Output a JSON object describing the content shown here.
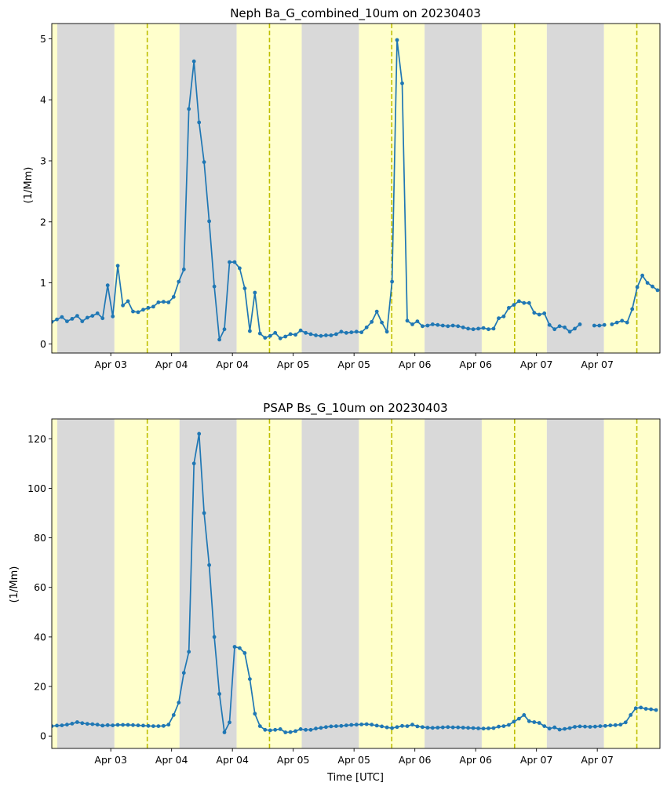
{
  "chart_data": [
    {
      "type": "line",
      "title": "Neph Ba_G_combined_10um on 20230403",
      "xlabel": "",
      "ylabel": "(1/Mm)",
      "xlim": [
        0,
        100
      ],
      "ylim": [
        -0.15,
        5.25
      ],
      "yticks": [
        0,
        1,
        2,
        3,
        4,
        5
      ],
      "xticks": [
        {
          "x": 9.7,
          "label": "Apr 03"
        },
        {
          "x": 19.7,
          "label": "Apr 04"
        },
        {
          "x": 29.7,
          "label": "Apr 04"
        },
        {
          "x": 39.7,
          "label": "Apr 05"
        },
        {
          "x": 49.7,
          "label": "Apr 05"
        },
        {
          "x": 59.7,
          "label": "Apr 06"
        },
        {
          "x": 69.7,
          "label": "Apr 06"
        },
        {
          "x": 79.7,
          "label": "Apr 07"
        },
        {
          "x": 89.7,
          "label": "Apr 07"
        }
      ],
      "shading": {
        "night_color": "#d9d9d9",
        "day_color": "#ffffcc",
        "bands": [
          {
            "type": "day",
            "x0": 0,
            "x1": 0.9
          },
          {
            "type": "night",
            "x0": 0.9,
            "x1": 10.3
          },
          {
            "type": "day",
            "x0": 10.3,
            "x1": 21.0
          },
          {
            "type": "night",
            "x0": 21.0,
            "x1": 30.4
          },
          {
            "type": "day",
            "x0": 30.4,
            "x1": 41.1
          },
          {
            "type": "night",
            "x0": 41.1,
            "x1": 50.5
          },
          {
            "type": "day",
            "x0": 50.5,
            "x1": 61.3
          },
          {
            "type": "night",
            "x0": 61.3,
            "x1": 70.7
          },
          {
            "type": "day",
            "x0": 70.7,
            "x1": 81.4
          },
          {
            "type": "night",
            "x0": 81.4,
            "x1": 90.8
          },
          {
            "type": "day",
            "x0": 90.8,
            "x1": 100
          }
        ]
      },
      "noon_lines": {
        "color": "#bfbf00",
        "x": [
          15.7,
          35.8,
          55.9,
          76.1,
          96.2
        ]
      },
      "series": [
        {
          "color": "#1f77b4",
          "segments": [
            {
              "x0": 0,
              "dx": 0.835,
              "values": [
                0.36,
                0.4,
                0.44,
                0.37,
                0.41,
                0.46,
                0.37,
                0.43,
                0.46,
                0.5,
                0.42,
                0.96,
                0.45,
                1.28,
                0.63,
                0.7,
                0.53,
                0.52,
                0.56,
                0.59,
                0.61,
                0.68,
                0.69,
                0.68,
                0.77,
                1.02,
                1.22,
                3.85,
                4.63,
                3.63,
                2.98,
                2.01,
                0.94,
                0.07,
                0.24,
                1.34,
                1.34,
                1.24,
                0.91,
                0.21,
                0.84,
                0.17,
                0.1,
                0.13,
                0.18,
                0.09,
                0.12,
                0.16,
                0.15,
                0.22,
                0.18,
                0.16,
                0.14,
                0.13,
                0.14,
                0.14,
                0.16,
                0.2,
                0.18,
                0.19,
                0.2,
                0.19,
                0.27,
                0.36,
                0.53,
                0.35,
                0.2,
                1.02,
                4.98,
                4.27,
                0.38,
                0.32,
                0.37,
                0.29,
                0.3,
                0.32,
                0.31,
                0.3,
                0.29,
                0.3,
                0.29,
                0.27,
                0.25,
                0.24,
                0.25,
                0.26,
                0.24,
                0.25,
                0.42,
                0.45,
                0.59,
                0.64,
                0.7,
                0.67,
                0.67,
                0.51,
                0.48,
                0.5,
                0.31,
                0.24,
                0.29,
                0.27,
                0.2,
                0.25,
                0.32
              ]
            },
            {
              "x0": 89.2,
              "dx": 0.835,
              "values": [
                0.3,
                0.3,
                0.31
              ]
            },
            {
              "x0": 92.1,
              "dx": 0.835,
              "values": [
                0.32,
                0.35,
                0.38,
                0.35,
                0.57,
                0.93,
                1.12,
                1.0,
                0.94,
                0.88
              ]
            }
          ]
        }
      ]
    },
    {
      "type": "line",
      "title": "PSAP Bs_G_10um on 20230403",
      "xlabel": "Time [UTC]",
      "ylabel": "(1/Mm)",
      "xlim": [
        0,
        100
      ],
      "ylim": [
        -5,
        128
      ],
      "yticks": [
        0,
        20,
        40,
        60,
        80,
        100,
        120
      ],
      "xticks": [
        {
          "x": 9.7,
          "label": "Apr 03"
        },
        {
          "x": 19.7,
          "label": "Apr 04"
        },
        {
          "x": 29.7,
          "label": "Apr 04"
        },
        {
          "x": 39.7,
          "label": "Apr 05"
        },
        {
          "x": 49.7,
          "label": "Apr 05"
        },
        {
          "x": 59.7,
          "label": "Apr 06"
        },
        {
          "x": 69.7,
          "label": "Apr 06"
        },
        {
          "x": 79.7,
          "label": "Apr 07"
        },
        {
          "x": 89.7,
          "label": "Apr 07"
        }
      ],
      "shading": {
        "night_color": "#d9d9d9",
        "day_color": "#ffffcc",
        "bands": [
          {
            "type": "day",
            "x0": 0,
            "x1": 0.9
          },
          {
            "type": "night",
            "x0": 0.9,
            "x1": 10.3
          },
          {
            "type": "day",
            "x0": 10.3,
            "x1": 21.0
          },
          {
            "type": "night",
            "x0": 21.0,
            "x1": 30.4
          },
          {
            "type": "day",
            "x0": 30.4,
            "x1": 41.1
          },
          {
            "type": "night",
            "x0": 41.1,
            "x1": 50.5
          },
          {
            "type": "day",
            "x0": 50.5,
            "x1": 61.3
          },
          {
            "type": "night",
            "x0": 61.3,
            "x1": 70.7
          },
          {
            "type": "day",
            "x0": 70.7,
            "x1": 81.4
          },
          {
            "type": "night",
            "x0": 81.4,
            "x1": 90.8
          },
          {
            "type": "day",
            "x0": 90.8,
            "x1": 100
          }
        ]
      },
      "noon_lines": {
        "color": "#bfbf00",
        "x": [
          15.7,
          35.8,
          55.9,
          76.1,
          96.2
        ]
      },
      "series": [
        {
          "color": "#1f77b4",
          "segments": [
            {
              "x0": 0,
              "dx": 0.835,
              "values": [
                4.0,
                4.2,
                4.3,
                4.6,
                5.0,
                5.6,
                5.2,
                4.9,
                4.8,
                4.6,
                4.2,
                4.4,
                4.3,
                4.5,
                4.5,
                4.5,
                4.4,
                4.3,
                4.2,
                4.1,
                4.0,
                4.0,
                4.1,
                4.6,
                8.5,
                13.5,
                25.5,
                34.0,
                110,
                122,
                90,
                69,
                40,
                17,
                1.5,
                5.5,
                36,
                35.5,
                33.5,
                23,
                9,
                4,
                2.5,
                2.3,
                2.5,
                2.8,
                1.5,
                1.6,
                2.0,
                2.8,
                2.5,
                2.5,
                3.0,
                3.3,
                3.6,
                3.9,
                4.0,
                4.1,
                4.3,
                4.5,
                4.6,
                4.7,
                4.8,
                4.6,
                4.2,
                3.9,
                3.5,
                3.2,
                3.6,
                4.1,
                4.0,
                4.6,
                3.9,
                3.6,
                3.4,
                3.3,
                3.4,
                3.5,
                3.6,
                3.5,
                3.5,
                3.4,
                3.3,
                3.2,
                3.1,
                3.0,
                3.1,
                3.2,
                3.8,
                4.0,
                4.5,
                5.8,
                7.0,
                8.5,
                6.0,
                5.6,
                5.3,
                4.0,
                3.0,
                3.5,
                2.6,
                2.9,
                3.2,
                3.7,
                3.9,
                3.8,
                3.7,
                3.8,
                4.0,
                4.1,
                4.3,
                4.4,
                4.6,
                5.5,
                8.5,
                11.2,
                11.5,
                11.0,
                10.8,
                10.5
              ]
            }
          ]
        }
      ]
    }
  ]
}
